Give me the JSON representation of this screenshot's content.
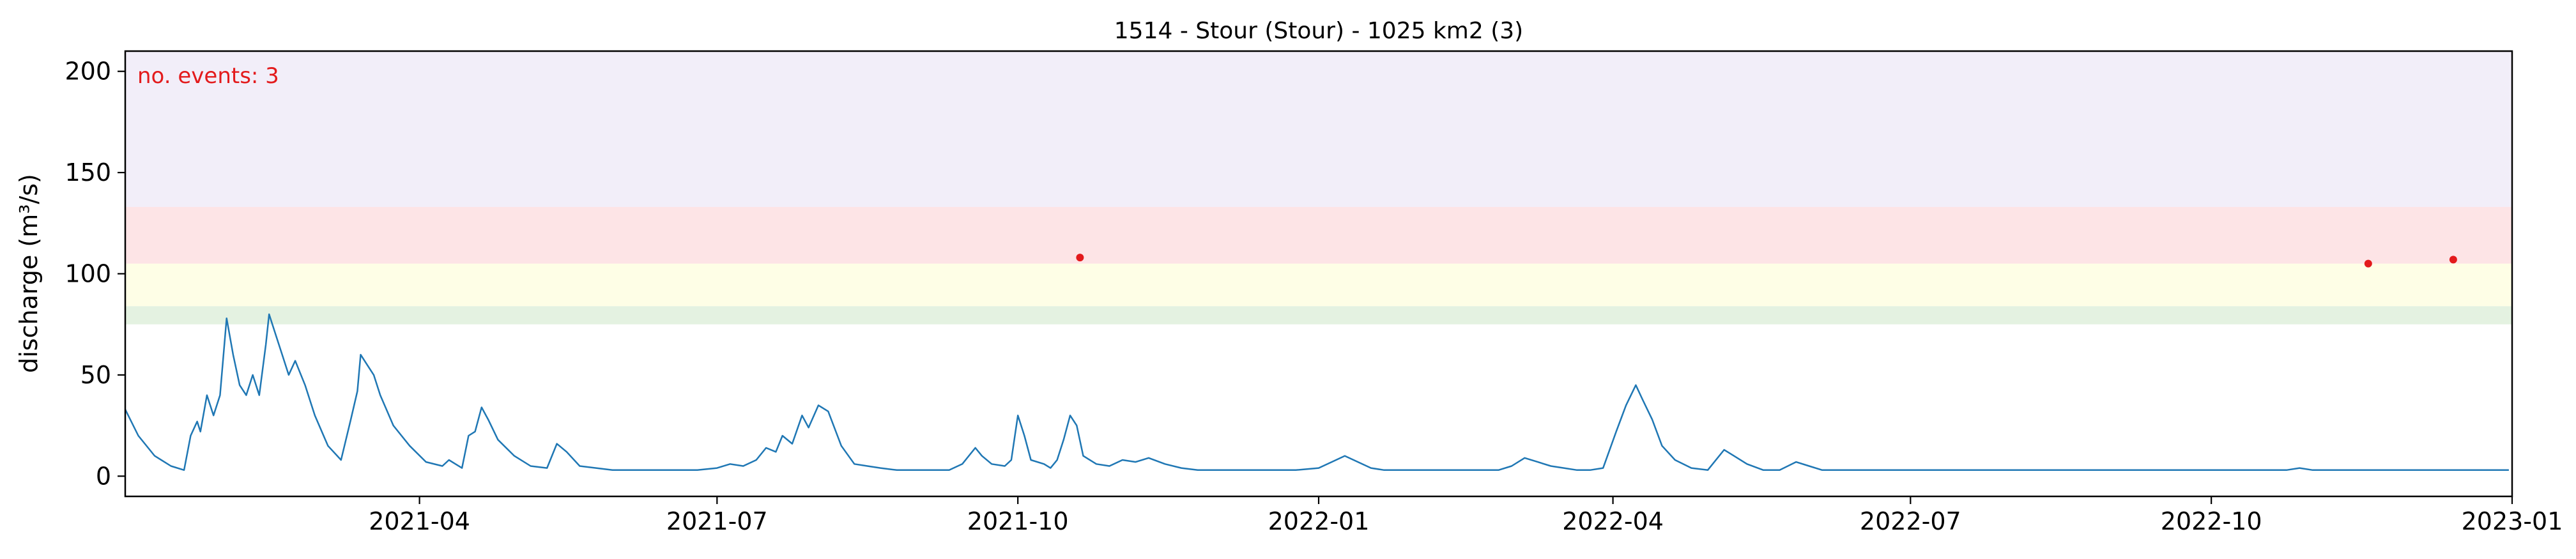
{
  "chart_data": {
    "type": "line",
    "title": "1514 - Stour (Stour) - 1025 km2 (3)",
    "xlabel": "",
    "ylabel": "discharge (m³/s)",
    "xlim": [
      "2021-01-01",
      "2023-01-01"
    ],
    "ylim": [
      -10,
      210
    ],
    "x_ticks": [
      "2021-04",
      "2021-07",
      "2021-10",
      "2022-01",
      "2022-04",
      "2022-07",
      "2022-10",
      "2023-01"
    ],
    "y_ticks": [
      0,
      50,
      100,
      150,
      200
    ],
    "grid": false,
    "annotation": "no. events: 3",
    "threshold_bands": [
      {
        "from": 75,
        "to": 84,
        "color": "#e4f2e1"
      },
      {
        "from": 84,
        "to": 105,
        "color": "#fefee6"
      },
      {
        "from": 105,
        "to": 133,
        "color": "#fde4e6"
      },
      {
        "from": 133,
        "to": 210,
        "color": "#f2eef9"
      }
    ],
    "series": [
      {
        "color": "#1f77b4",
        "points": [
          [
            "2021-01-01",
            33
          ],
          [
            "2021-01-05",
            20
          ],
          [
            "2021-01-10",
            10
          ],
          [
            "2021-01-15",
            5
          ],
          [
            "2021-01-19",
            3
          ],
          [
            "2021-01-21",
            20
          ],
          [
            "2021-01-23",
            27
          ],
          [
            "2021-01-24",
            22
          ],
          [
            "2021-01-26",
            40
          ],
          [
            "2021-01-28",
            30
          ],
          [
            "2021-01-30",
            40
          ],
          [
            "2021-02-01",
            78
          ],
          [
            "2021-02-03",
            60
          ],
          [
            "2021-02-05",
            45
          ],
          [
            "2021-02-07",
            40
          ],
          [
            "2021-02-09",
            50
          ],
          [
            "2021-02-11",
            40
          ],
          [
            "2021-02-13",
            65
          ],
          [
            "2021-02-14",
            80
          ],
          [
            "2021-02-16",
            70
          ],
          [
            "2021-02-18",
            60
          ],
          [
            "2021-02-20",
            50
          ],
          [
            "2021-02-22",
            57
          ],
          [
            "2021-02-25",
            45
          ],
          [
            "2021-02-28",
            30
          ],
          [
            "2021-03-04",
            15
          ],
          [
            "2021-03-08",
            8
          ],
          [
            "2021-03-11",
            28
          ],
          [
            "2021-03-13",
            42
          ],
          [
            "2021-03-14",
            60
          ],
          [
            "2021-03-16",
            55
          ],
          [
            "2021-03-18",
            50
          ],
          [
            "2021-03-20",
            40
          ],
          [
            "2021-03-24",
            25
          ],
          [
            "2021-03-29",
            15
          ],
          [
            "2021-04-03",
            7
          ],
          [
            "2021-04-08",
            5
          ],
          [
            "2021-04-10",
            8
          ],
          [
            "2021-04-12",
            6
          ],
          [
            "2021-04-14",
            4
          ],
          [
            "2021-04-16",
            20
          ],
          [
            "2021-04-18",
            22
          ],
          [
            "2021-04-20",
            34
          ],
          [
            "2021-04-22",
            28
          ],
          [
            "2021-04-25",
            18
          ],
          [
            "2021-04-30",
            10
          ],
          [
            "2021-05-05",
            5
          ],
          [
            "2021-05-10",
            4
          ],
          [
            "2021-05-13",
            16
          ],
          [
            "2021-05-16",
            12
          ],
          [
            "2021-05-20",
            5
          ],
          [
            "2021-05-25",
            4
          ],
          [
            "2021-05-30",
            3
          ],
          [
            "2021-06-05",
            3
          ],
          [
            "2021-06-15",
            3
          ],
          [
            "2021-06-25",
            3
          ],
          [
            "2021-07-01",
            4
          ],
          [
            "2021-07-05",
            6
          ],
          [
            "2021-07-09",
            5
          ],
          [
            "2021-07-13",
            8
          ],
          [
            "2021-07-16",
            14
          ],
          [
            "2021-07-19",
            12
          ],
          [
            "2021-07-21",
            20
          ],
          [
            "2021-07-24",
            16
          ],
          [
            "2021-07-27",
            30
          ],
          [
            "2021-07-29",
            24
          ],
          [
            "2021-08-01",
            35
          ],
          [
            "2021-08-04",
            32
          ],
          [
            "2021-08-08",
            15
          ],
          [
            "2021-08-12",
            6
          ],
          [
            "2021-08-16",
            5
          ],
          [
            "2021-08-20",
            4
          ],
          [
            "2021-08-25",
            3
          ],
          [
            "2021-09-02",
            3
          ],
          [
            "2021-09-10",
            3
          ],
          [
            "2021-09-14",
            6
          ],
          [
            "2021-09-16",
            10
          ],
          [
            "2021-09-18",
            14
          ],
          [
            "2021-09-20",
            10
          ],
          [
            "2021-09-23",
            6
          ],
          [
            "2021-09-27",
            5
          ],
          [
            "2021-09-29",
            8
          ],
          [
            "2021-10-01",
            30
          ],
          [
            "2021-10-03",
            20
          ],
          [
            "2021-10-05",
            8
          ],
          [
            "2021-10-09",
            6
          ],
          [
            "2021-10-11",
            4
          ],
          [
            "2021-10-13",
            8
          ],
          [
            "2021-10-15",
            18
          ],
          [
            "2021-10-17",
            30
          ],
          [
            "2021-10-19",
            25
          ],
          [
            "2021-10-21",
            10
          ],
          [
            "2021-10-25",
            6
          ],
          [
            "2021-10-29",
            5
          ],
          [
            "2021-11-02",
            8
          ],
          [
            "2021-11-06",
            7
          ],
          [
            "2021-11-10",
            9
          ],
          [
            "2021-11-15",
            6
          ],
          [
            "2021-11-20",
            4
          ],
          [
            "2021-11-25",
            3
          ],
          [
            "2021-11-30",
            3
          ],
          [
            "2021-12-05",
            3
          ],
          [
            "2021-12-10",
            3
          ],
          [
            "2021-12-15",
            3
          ],
          [
            "2021-12-20",
            3
          ],
          [
            "2021-12-25",
            3
          ],
          [
            "2022-01-01",
            4
          ],
          [
            "2022-01-05",
            7
          ],
          [
            "2022-01-09",
            10
          ],
          [
            "2022-01-13",
            7
          ],
          [
            "2022-01-17",
            4
          ],
          [
            "2022-01-21",
            3
          ],
          [
            "2022-01-25",
            3
          ],
          [
            "2022-01-30",
            3
          ],
          [
            "2022-02-05",
            3
          ],
          [
            "2022-02-10",
            3
          ],
          [
            "2022-02-15",
            3
          ],
          [
            "2022-02-20",
            3
          ],
          [
            "2022-02-25",
            3
          ],
          [
            "2022-03-01",
            5
          ],
          [
            "2022-03-05",
            9
          ],
          [
            "2022-03-09",
            7
          ],
          [
            "2022-03-13",
            5
          ],
          [
            "2022-03-17",
            4
          ],
          [
            "2022-03-21",
            3
          ],
          [
            "2022-03-25",
            3
          ],
          [
            "2022-03-29",
            4
          ],
          [
            "2022-04-02",
            22
          ],
          [
            "2022-04-05",
            35
          ],
          [
            "2022-04-08",
            45
          ],
          [
            "2022-04-10",
            38
          ],
          [
            "2022-04-13",
            28
          ],
          [
            "2022-04-16",
            15
          ],
          [
            "2022-04-20",
            8
          ],
          [
            "2022-04-25",
            4
          ],
          [
            "2022-04-30",
            3
          ],
          [
            "2022-05-05",
            13
          ],
          [
            "2022-05-08",
            10
          ],
          [
            "2022-05-12",
            6
          ],
          [
            "2022-05-17",
            3
          ],
          [
            "2022-05-22",
            3
          ],
          [
            "2022-05-27",
            7
          ],
          [
            "2022-05-31",
            5
          ],
          [
            "2022-06-04",
            3
          ],
          [
            "2022-06-09",
            3
          ],
          [
            "2022-06-14",
            3
          ],
          [
            "2022-06-19",
            3
          ],
          [
            "2022-06-24",
            3
          ],
          [
            "2022-06-29",
            3
          ],
          [
            "2022-07-04",
            3
          ],
          [
            "2022-07-09",
            3
          ],
          [
            "2022-07-14",
            3
          ],
          [
            "2022-07-19",
            3
          ],
          [
            "2022-07-24",
            3
          ],
          [
            "2022-07-29",
            3
          ],
          [
            "2022-08-03",
            3
          ],
          [
            "2022-08-08",
            3
          ],
          [
            "2022-08-13",
            3
          ],
          [
            "2022-08-18",
            3
          ],
          [
            "2022-08-23",
            3
          ],
          [
            "2022-08-28",
            3
          ],
          [
            "2022-09-02",
            3
          ],
          [
            "2022-09-07",
            3
          ],
          [
            "2022-09-12",
            3
          ],
          [
            "2022-09-17",
            3
          ],
          [
            "2022-09-22",
            3
          ],
          [
            "2022-09-27",
            3
          ],
          [
            "2022-10-02",
            3
          ],
          [
            "2022-10-07",
            3
          ],
          [
            "2022-10-12",
            3
          ],
          [
            "2022-10-16",
            3
          ],
          [
            "2022-10-20",
            3
          ],
          [
            "2022-10-24",
            3
          ],
          [
            "2022-10-28",
            4
          ],
          [
            "2022-11-01",
            3
          ],
          [
            "2022-11-05",
            3
          ],
          [
            "2022-11-09",
            3
          ],
          [
            "2022-11-13",
            3
          ],
          [
            "2022-11-17",
            3
          ],
          [
            "2022-11-21",
            3
          ],
          [
            "2022-11-25",
            3
          ],
          [
            "2022-11-29",
            3
          ],
          [
            "2022-12-03",
            3
          ],
          [
            "2022-12-07",
            3
          ],
          [
            "2022-12-11",
            3
          ],
          [
            "2022-12-15",
            3
          ],
          [
            "2022-12-19",
            3
          ],
          [
            "2022-12-23",
            3
          ],
          [
            "2022-12-27",
            3
          ],
          [
            "2022-12-31",
            3
          ]
        ]
      }
    ],
    "events": [
      {
        "x": "2021-10-20",
        "y": 108
      },
      {
        "x": "2022-11-18",
        "y": 105
      },
      {
        "x": "2022-12-14",
        "y": 107
      }
    ]
  }
}
